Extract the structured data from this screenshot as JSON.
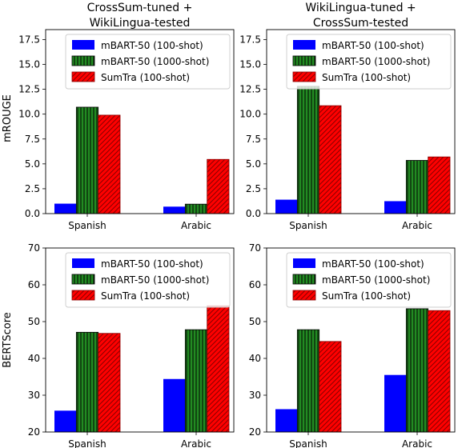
{
  "ylabels": {
    "top": "mROUGE",
    "bottom": "BERTScore"
  },
  "legend_entries": [
    "mBART-50 (100-shot)",
    "mBART-50 (1000-shot)",
    "SumTra (100-shot)"
  ],
  "series_styles": {
    "colors": [
      "#0000ff",
      "#228b22",
      "#ff0000"
    ],
    "edge_colors": [
      "#0000ff",
      "#000000",
      "#8b0000"
    ],
    "hatch": [
      "none",
      "vertical-lines",
      "diagonal-lines"
    ]
  },
  "chart_data": [
    {
      "type": "bar",
      "title_lines": [
        "CrossSum-tuned +",
        "WikiLingua-tested"
      ],
      "ylabel": "mROUGE",
      "categories": [
        "Spanish",
        "Arabic"
      ],
      "ylim": [
        0,
        18.5
      ],
      "yticks": [
        "0.0",
        "2.5",
        "5.0",
        "7.5",
        "10.0",
        "12.5",
        "15.0",
        "17.5"
      ],
      "legend_placement": "top-right",
      "grid": false,
      "series": [
        {
          "name": "mBART-50 (100-shot)",
          "values": [
            1.0,
            0.7
          ]
        },
        {
          "name": "mBART-50 (1000-shot)",
          "values": [
            10.7,
            0.95
          ]
        },
        {
          "name": "SumTra (100-shot)",
          "values": [
            9.9,
            5.45
          ]
        }
      ]
    },
    {
      "type": "bar",
      "title_lines": [
        "WikiLingua-tuned +",
        "CrossSum-tested"
      ],
      "ylabel": "",
      "categories": [
        "Spanish",
        "Arabic"
      ],
      "ylim": [
        0,
        18.5
      ],
      "yticks": [
        "0.0",
        "2.5",
        "5.0",
        "7.5",
        "10.0",
        "12.5",
        "15.0",
        "17.5"
      ],
      "legend_placement": "top-right",
      "grid": false,
      "series": [
        {
          "name": "mBART-50 (100-shot)",
          "values": [
            1.4,
            1.25
          ]
        },
        {
          "name": "mBART-50 (1000-shot)",
          "values": [
            12.8,
            5.35
          ]
        },
        {
          "name": "SumTra (100-shot)",
          "values": [
            10.85,
            5.7
          ]
        }
      ]
    },
    {
      "type": "bar",
      "title_lines": [],
      "ylabel": "BERTScore",
      "categories": [
        "Spanish",
        "Arabic"
      ],
      "ylim": [
        20,
        70
      ],
      "yticks": [
        "20",
        "30",
        "40",
        "50",
        "60",
        "70"
      ],
      "legend_placement": "top-right",
      "grid": false,
      "series": [
        {
          "name": "mBART-50 (100-shot)",
          "values": [
            25.8,
            34.4
          ]
        },
        {
          "name": "mBART-50 (1000-shot)",
          "values": [
            47.1,
            47.8
          ]
        },
        {
          "name": "SumTra (100-shot)",
          "values": [
            46.8,
            54.3
          ]
        }
      ]
    },
    {
      "type": "bar",
      "title_lines": [],
      "ylabel": "",
      "categories": [
        "Spanish",
        "Arabic"
      ],
      "ylim": [
        20,
        70
      ],
      "yticks": [
        "20",
        "30",
        "40",
        "50",
        "60",
        "70"
      ],
      "legend_placement": "top-right",
      "grid": false,
      "series": [
        {
          "name": "mBART-50 (100-shot)",
          "values": [
            26.2,
            35.5
          ]
        },
        {
          "name": "mBART-50 (1000-shot)",
          "values": [
            47.8,
            53.5
          ]
        },
        {
          "name": "SumTra (100-shot)",
          "values": [
            44.6,
            53.0
          ]
        }
      ]
    }
  ]
}
